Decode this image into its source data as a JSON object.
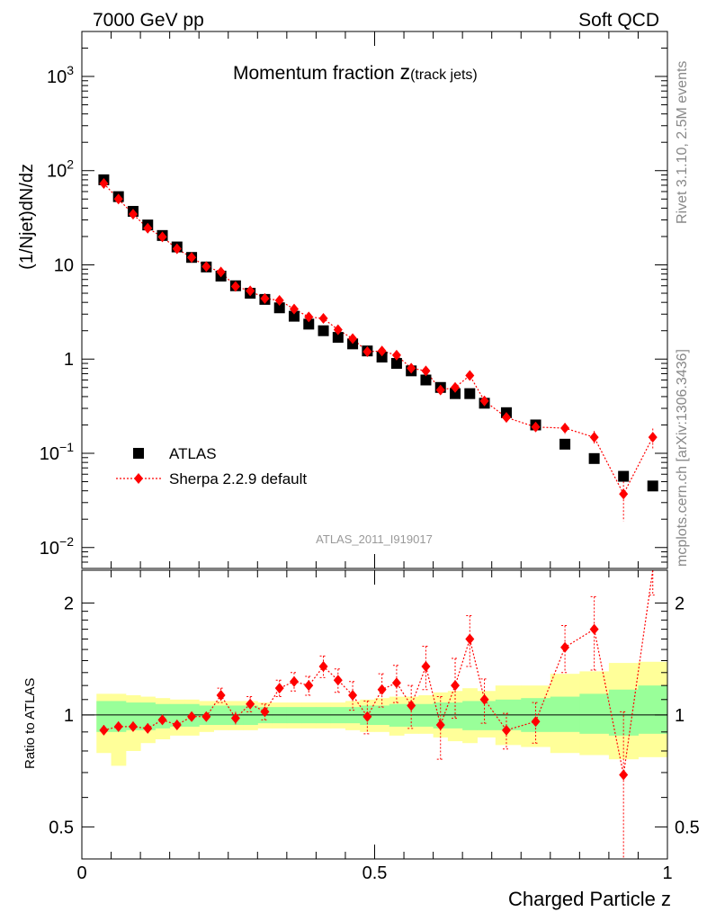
{
  "header": {
    "left": "7000 GeV pp",
    "right": "Soft QCD"
  },
  "side_labels": {
    "rivet": "Rivet 3.1.10,  2.5M events",
    "mcplots": "mcplots.cern.ch [arXiv:1306.3436]"
  },
  "colors": {
    "atlas": "#000000",
    "sherpa": "#ff0000",
    "band_inner": "#99ff99",
    "band_outer": "#ffff99"
  },
  "chart_data": [
    {
      "type": "scatter",
      "title_main": "Momentum fraction ",
      "title_z": "z",
      "title_sub": "(track jets)",
      "ylabel": "(1/Njet)dN/dz",
      "yscale": "log",
      "xlim": [
        0,
        1
      ],
      "ylim": [
        0.006,
        3000
      ],
      "y_ticks": [
        {
          "value": 0.01,
          "base": "10",
          "exp": "−2"
        },
        {
          "value": 0.1,
          "base": "10",
          "exp": "−1"
        },
        {
          "value": 1,
          "base": "1",
          "exp": ""
        },
        {
          "value": 10,
          "base": "10",
          "exp": ""
        },
        {
          "value": 100,
          "base": "10",
          "exp": "2"
        },
        {
          "value": 1000,
          "base": "10",
          "exp": "3"
        }
      ],
      "analysis_label": "ATLAS_2011_I919017",
      "legend": {
        "position": "bottom-left",
        "entries": [
          "ATLAS",
          "Sherpa 2.2.9 default"
        ]
      },
      "x": [
        0.0375,
        0.0625,
        0.0875,
        0.1125,
        0.1375,
        0.1625,
        0.1875,
        0.2125,
        0.2375,
        0.2625,
        0.2875,
        0.3125,
        0.3375,
        0.3625,
        0.3875,
        0.4125,
        0.4375,
        0.4625,
        0.4875,
        0.5125,
        0.5375,
        0.5625,
        0.5875,
        0.6125,
        0.6375,
        0.6625,
        0.6875,
        0.725,
        0.775,
        0.825,
        0.875,
        0.925,
        0.975
      ],
      "series": [
        {
          "name": "ATLAS",
          "values": [
            80,
            53,
            37,
            26.5,
            20.5,
            15.5,
            12,
            9.5,
            7.6,
            6.0,
            5.0,
            4.3,
            3.5,
            2.85,
            2.35,
            2.0,
            1.7,
            1.45,
            1.22,
            1.05,
            0.9,
            0.75,
            0.6,
            0.5,
            0.43,
            0.43,
            0.34,
            0.27,
            0.2,
            0.125,
            0.088,
            0.057,
            0.045
          ]
        },
        {
          "name": "Sherpa 2.2.9 default",
          "values": [
            73,
            50,
            34.5,
            24.5,
            19.8,
            14.8,
            12,
            9.6,
            8.4,
            5.9,
            5.3,
            4.4,
            4.2,
            3.4,
            2.8,
            2.7,
            2.05,
            1.65,
            1.2,
            1.22,
            1.1,
            0.8,
            0.75,
            0.47,
            0.5,
            0.67,
            0.36,
            0.24,
            0.19,
            0.185,
            0.148,
            0.037,
            0.148
          ],
          "err": [
            0,
            0,
            0,
            0,
            0,
            0,
            0,
            0,
            0,
            0,
            0,
            0,
            0,
            0,
            0,
            0,
            0,
            0,
            0,
            0,
            0,
            0,
            0,
            0,
            0,
            0.05,
            0.03,
            0.025,
            0.02,
            0.025,
            0.025,
            0.018,
            0.035
          ]
        }
      ]
    },
    {
      "type": "scatter",
      "ylabel": "Ratio to ATLAS",
      "yscale": "log",
      "xlim": [
        0,
        1
      ],
      "ylim": [
        0.41,
        2.45
      ],
      "y_ticks": [
        0.5,
        1,
        2
      ],
      "x_ticks": [
        0,
        0.5,
        1
      ],
      "xlabel": "Charged Particle z",
      "reference_line": 1,
      "ratio": [
        0.91,
        0.93,
        0.93,
        0.92,
        0.97,
        0.94,
        0.99,
        0.99,
        1.13,
        0.98,
        1.07,
        1.02,
        1.18,
        1.23,
        1.2,
        1.35,
        1.24,
        1.13,
        0.99,
        1.17,
        1.22,
        1.06,
        1.35,
        0.94,
        1.2,
        1.6,
        1.1,
        0.91,
        0.96,
        1.52,
        1.7,
        0.69,
        3.3
      ],
      "ratio_err": [
        0.03,
        0.03,
        0.03,
        0.03,
        0.03,
        0.03,
        0.03,
        0.03,
        0.05,
        0.04,
        0.05,
        0.05,
        0.06,
        0.07,
        0.07,
        0.09,
        0.09,
        0.1,
        0.1,
        0.12,
        0.14,
        0.14,
        0.18,
        0.18,
        0.22,
        0.25,
        0.15,
        0.1,
        0.12,
        0.22,
        0.38,
        0.33,
        1.2
      ],
      "band_inner": [
        [
          0.9,
          1.09
        ],
        [
          0.9,
          1.09
        ],
        [
          0.91,
          1.08
        ],
        [
          0.91,
          1.08
        ],
        [
          0.92,
          1.07
        ],
        [
          0.93,
          1.07
        ],
        [
          0.93,
          1.07
        ],
        [
          0.94,
          1.06
        ],
        [
          0.94,
          1.06
        ],
        [
          0.94,
          1.06
        ],
        [
          0.94,
          1.06
        ],
        [
          0.95,
          1.05
        ],
        [
          0.95,
          1.05
        ],
        [
          0.95,
          1.05
        ],
        [
          0.95,
          1.05
        ],
        [
          0.95,
          1.05
        ],
        [
          0.95,
          1.05
        ],
        [
          0.95,
          1.05
        ],
        [
          0.94,
          1.06
        ],
        [
          0.94,
          1.06
        ],
        [
          0.93,
          1.07
        ],
        [
          0.93,
          1.07
        ],
        [
          0.93,
          1.07
        ],
        [
          0.92,
          1.08
        ],
        [
          0.92,
          1.08
        ],
        [
          0.91,
          1.09
        ],
        [
          0.91,
          1.09
        ],
        [
          0.91,
          1.1
        ],
        [
          0.9,
          1.11
        ],
        [
          0.9,
          1.12
        ],
        [
          0.89,
          1.14
        ],
        [
          0.88,
          1.17
        ],
        [
          0.89,
          1.2
        ]
      ],
      "band_outer": [
        [
          0.79,
          1.14
        ],
        [
          0.73,
          1.14
        ],
        [
          0.8,
          1.13
        ],
        [
          0.84,
          1.12
        ],
        [
          0.86,
          1.11
        ],
        [
          0.88,
          1.1
        ],
        [
          0.88,
          1.1
        ],
        [
          0.9,
          1.09
        ],
        [
          0.91,
          1.09
        ],
        [
          0.91,
          1.09
        ],
        [
          0.91,
          1.09
        ],
        [
          0.92,
          1.08
        ],
        [
          0.92,
          1.08
        ],
        [
          0.92,
          1.08
        ],
        [
          0.92,
          1.08
        ],
        [
          0.92,
          1.08
        ],
        [
          0.92,
          1.08
        ],
        [
          0.91,
          1.09
        ],
        [
          0.9,
          1.1
        ],
        [
          0.9,
          1.11
        ],
        [
          0.88,
          1.12
        ],
        [
          0.89,
          1.12
        ],
        [
          0.89,
          1.13
        ],
        [
          0.87,
          1.15
        ],
        [
          0.85,
          1.16
        ],
        [
          0.84,
          1.18
        ],
        [
          0.87,
          1.16
        ],
        [
          0.83,
          1.2
        ],
        [
          0.82,
          1.2
        ],
        [
          0.79,
          1.29
        ],
        [
          0.78,
          1.31
        ],
        [
          0.76,
          1.38
        ],
        [
          0.77,
          1.39
        ]
      ]
    }
  ]
}
